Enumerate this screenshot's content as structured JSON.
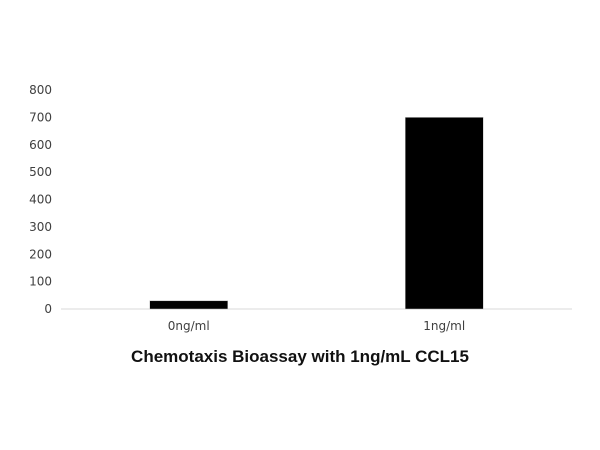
{
  "chart_data": {
    "type": "bar",
    "title": "Chemotaxis Bioassay with 1ng/mL CCL15",
    "xlabel": "",
    "ylabel": "",
    "categories": [
      "0ng/ml",
      "1ng/ml"
    ],
    "values": [
      30,
      700
    ],
    "ylim": [
      0,
      800
    ],
    "yticks": [
      0,
      100,
      200,
      300,
      400,
      500,
      600,
      700,
      800
    ],
    "grid": false,
    "legend": "none",
    "bar_color": "#000000"
  }
}
